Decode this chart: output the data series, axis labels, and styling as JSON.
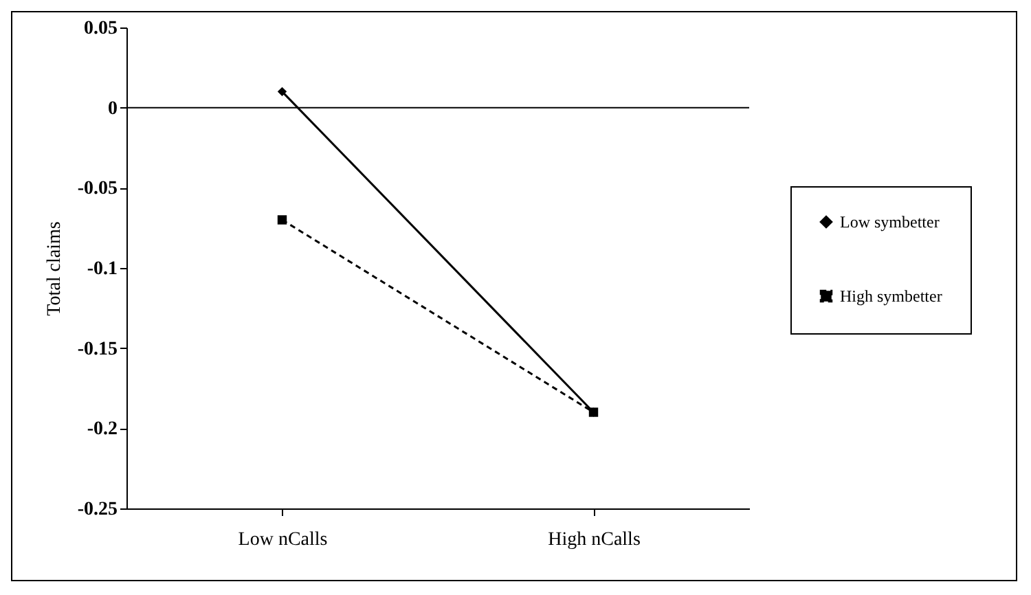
{
  "chart_data": {
    "type": "line",
    "ylabel": "Total claims",
    "categories": [
      "Low nCalls",
      "High nCalls"
    ],
    "series": [
      {
        "name": "Low symbetter",
        "color": "#000000",
        "marker": "diamond",
        "line_style": "solid",
        "values": [
          0.01,
          -0.19
        ]
      },
      {
        "name": "High symbetter",
        "color": "#000000",
        "marker": "square",
        "line_style": "dashed",
        "values": [
          -0.07,
          -0.19
        ]
      }
    ],
    "ylim": [
      -0.25,
      0.05
    ],
    "yticks": [
      -0.25,
      -0.2,
      -0.15,
      -0.1,
      -0.05,
      0,
      0.05
    ],
    "ref_lines": [
      {
        "axis": "y",
        "value": 0
      }
    ],
    "grid": false,
    "legend": "right"
  }
}
